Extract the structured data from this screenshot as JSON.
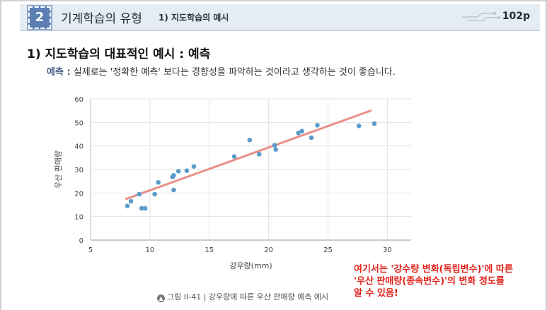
{
  "header": {
    "chapter_number": "2",
    "title": "기계학습의 유형",
    "subtitle": "1) 지도학습의 예시",
    "page": "102p"
  },
  "section": {
    "title": "1) 지도학습의 대표적인 예시 : 예측",
    "term": "예측 :",
    "description": " 실제로는 '정확한 예측' 보다는 경향성을 파악하는 것이라고 생각하는 것이 좋습니다."
  },
  "chart_data": {
    "type": "scatter",
    "title": "",
    "xlabel": "강우량(mm)",
    "ylabel": "우산 판매량",
    "xlim": [
      5,
      32
    ],
    "ylim": [
      0,
      60
    ],
    "xticks": [
      5,
      10,
      15,
      20,
      25,
      30
    ],
    "yticks": [
      0,
      10,
      20,
      30,
      40,
      50,
      60
    ],
    "grid": true,
    "points": [
      [
        8.1,
        14.5
      ],
      [
        8.4,
        16.5
      ],
      [
        9.1,
        19.5
      ],
      [
        9.3,
        13.5
      ],
      [
        9.6,
        13.5
      ],
      [
        10.4,
        19.5
      ],
      [
        10.7,
        24.5
      ],
      [
        11.9,
        26.8
      ],
      [
        12.0,
        27.5
      ],
      [
        12.0,
        21.3
      ],
      [
        12.4,
        29.3
      ],
      [
        13.1,
        29.5
      ],
      [
        13.7,
        31.3
      ],
      [
        17.1,
        35.5
      ],
      [
        18.4,
        42.5
      ],
      [
        19.2,
        36.5
      ],
      [
        20.5,
        40.3
      ],
      [
        20.6,
        38.5
      ],
      [
        22.5,
        45.5
      ],
      [
        22.8,
        46.3
      ],
      [
        23.6,
        43.5
      ],
      [
        24.1,
        48.8
      ],
      [
        27.6,
        48.5
      ],
      [
        28.9,
        49.5
      ]
    ],
    "trend_line": {
      "x": [
        8.0,
        28.6
      ],
      "y": [
        17.5,
        55.0
      ]
    },
    "colors": {
      "points": "#5b9bc9",
      "trend": "#e8908a",
      "grid": "#e2e2e2"
    }
  },
  "note": {
    "lines": [
      "여기서는 '강수량 변화(독립변수)'에 따른",
      "'우산 판매량(종속변수)'의 변화 정도를",
      "알 수 있음!"
    ]
  },
  "caption": {
    "text": "그림 II-41 | 강우량에 따른 우산 판매량 예측 예시"
  }
}
